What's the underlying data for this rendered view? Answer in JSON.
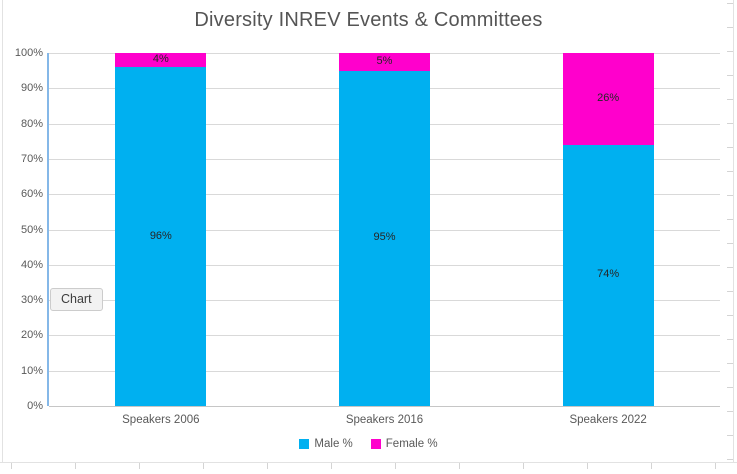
{
  "title": "Diversity INREV Events & Committees",
  "tooltip": {
    "label": "Chart"
  },
  "legend": {
    "items": [
      {
        "label": "Male %",
        "color": "#00B0F0"
      },
      {
        "label": "Female %",
        "color": "#FF00CC"
      }
    ]
  },
  "colors": {
    "male": "#00B0F0",
    "female": "#FF00CC",
    "gridline": "#D9D9D9",
    "y_axis_line": "#85B8E8",
    "axis_text": "#595959",
    "data_label_text": "#262626",
    "title_text": "#555555"
  },
  "chart_data": {
    "type": "bar",
    "stacked": true,
    "title": "Diversity INREV Events & Committees",
    "categories": [
      "Speakers 2006",
      "Speakers 2016",
      "Speakers 2022"
    ],
    "series": [
      {
        "name": "Male %",
        "color": "#00B0F0",
        "values": [
          96,
          95,
          74
        ],
        "labels": [
          "96%",
          "95%",
          "74%"
        ]
      },
      {
        "name": "Female %",
        "color": "#FF00CC",
        "values": [
          4,
          5,
          26
        ],
        "labels": [
          "4%",
          "5%",
          "26%"
        ]
      }
    ],
    "xlabel": "",
    "ylabel": "",
    "ylim": [
      0,
      100
    ],
    "ytick_step": 10,
    "ytick_labels": [
      "0%",
      "10%",
      "20%",
      "30%",
      "40%",
      "50%",
      "60%",
      "70%",
      "80%",
      "90%",
      "100%"
    ],
    "grid": true,
    "legend_position": "bottom"
  }
}
